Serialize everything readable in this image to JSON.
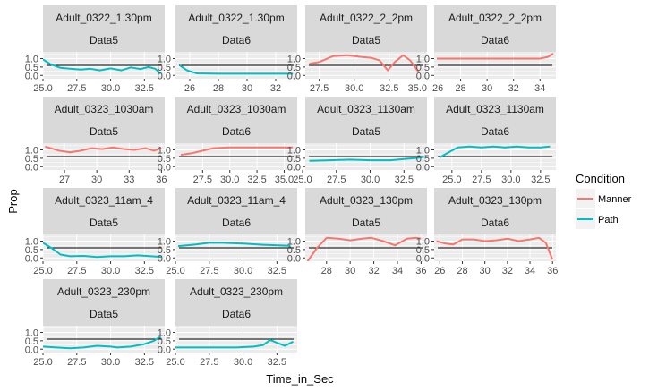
{
  "chart_data": {
    "type": "line",
    "xlabel": "Time_in_Sec",
    "ylabel": "Prop",
    "y_ticks": [
      "0.0",
      "0.5",
      "1.0"
    ],
    "ylim": [
      -0.2,
      1.4
    ],
    "reference_line_y": 0.6,
    "legend": {
      "title": "Condition",
      "placement": "right",
      "items": [
        {
          "name": "Manner",
          "color": "#F8766D"
        },
        {
          "name": "Path",
          "color": "#00BFC4"
        }
      ]
    },
    "panels": [
      {
        "strip1": "Adult_0322_1.30pm",
        "strip2": "Data5",
        "xlim": [
          25,
          34
        ],
        "xticks": [
          25.0,
          27.5,
          30.0,
          32.5
        ],
        "xtick_labels": [
          "25.0",
          "27.5",
          "30.0",
          "32.5"
        ],
        "series": [
          {
            "name": "Path",
            "points": [
              [
                25.0,
                0.95
              ],
              [
                25.6,
                0.65
              ],
              [
                26.3,
                0.45
              ],
              [
                27.0,
                0.4
              ],
              [
                27.8,
                0.35
              ],
              [
                28.5,
                0.4
              ],
              [
                29.2,
                0.3
              ],
              [
                30.0,
                0.42
              ],
              [
                30.8,
                0.3
              ],
              [
                31.5,
                0.48
              ],
              [
                32.2,
                0.38
              ],
              [
                32.8,
                0.5
              ],
              [
                33.3,
                0.4
              ],
              [
                33.7,
                0.1
              ]
            ]
          }
        ]
      },
      {
        "strip1": "Adult_0322_1.30pm",
        "strip2": "Data6",
        "xlim": [
          25,
          33.5
        ],
        "xticks": [
          26,
          28,
          30,
          32
        ],
        "xtick_labels": [
          "26",
          "28",
          "30",
          "32"
        ],
        "series": [
          {
            "name": "Path",
            "points": [
              [
                25.3,
                0.6
              ],
              [
                25.8,
                0.3
              ],
              [
                26.5,
                0.12
              ],
              [
                28,
                0.1
              ],
              [
                30,
                0.1
              ],
              [
                32,
                0.1
              ],
              [
                33.2,
                0.1
              ]
            ]
          }
        ]
      },
      {
        "strip1": "Adult_0322_2_2pm",
        "strip2": "Data5",
        "xlim": [
          26.5,
          35.2
        ],
        "xticks": [
          27.5,
          30.0,
          32.5
        ],
        "xtick_labels": [
          "27.5",
          "30.0",
          "32.5"
        ],
        "right_tick_label": "35.0",
        "series": [
          {
            "name": "Manner",
            "points": [
              [
                26.8,
                0.7
              ],
              [
                27.5,
                0.8
              ],
              [
                28.5,
                1.15
              ],
              [
                29.5,
                1.2
              ],
              [
                30.5,
                1.1
              ],
              [
                31.2,
                1.05
              ],
              [
                31.8,
                0.9
              ],
              [
                32.4,
                0.3
              ],
              [
                32.9,
                0.8
              ],
              [
                33.5,
                1.2
              ],
              [
                34,
                0.9
              ],
              [
                34.6,
                0.2
              ]
            ]
          }
        ]
      },
      {
        "strip1": "Adult_0322_2_2pm",
        "strip2": "Data6",
        "xlim": [
          26,
          35.2
        ],
        "xticks": [
          28,
          30,
          32,
          34
        ],
        "xtick_labels": [
          "28",
          "30",
          "32",
          "34"
        ],
        "left_tick_label": "26",
        "series": [
          {
            "name": "Manner",
            "points": [
              [
                26.2,
                1.0
              ],
              [
                28,
                1.0
              ],
              [
                30,
                1.0
              ],
              [
                32,
                1.0
              ],
              [
                34,
                1.0
              ],
              [
                34.6,
                1.1
              ],
              [
                35.0,
                1.3
              ]
            ]
          }
        ]
      },
      {
        "strip1": "Adult_0323_1030am",
        "strip2": "Data5",
        "xlim": [
          25,
          36.3
        ],
        "xticks": [
          27,
          30,
          33,
          36
        ],
        "xtick_labels": [
          "27",
          "30",
          "33",
          "36"
        ],
        "series": [
          {
            "name": "Manner",
            "points": [
              [
                25.2,
                1.2
              ],
              [
                26.5,
                0.95
              ],
              [
                27.5,
                0.85
              ],
              [
                28.5,
                0.95
              ],
              [
                29.5,
                1.1
              ],
              [
                30.5,
                1.05
              ],
              [
                31.5,
                1.15
              ],
              [
                32.5,
                1.05
              ],
              [
                33.5,
                1.0
              ],
              [
                34.5,
                1.1
              ],
              [
                35.3,
                0.95
              ],
              [
                36,
                1.1
              ]
            ]
          }
        ]
      },
      {
        "strip1": "Adult_0323_1030am",
        "strip2": "Data6",
        "xlim": [
          25,
          36.2
        ],
        "xticks": [
          27.5,
          30.0,
          32.5,
          35.0
        ],
        "xtick_labels": [
          "27.5",
          "30.0",
          "32.5",
          "35.0"
        ],
        "series": [
          {
            "name": "Manner",
            "points": [
              [
                25.5,
                0.7
              ],
              [
                26.5,
                0.8
              ],
              [
                27.5,
                0.95
              ],
              [
                28.5,
                1.1
              ],
              [
                30,
                1.15
              ],
              [
                31.5,
                1.15
              ],
              [
                33,
                1.15
              ],
              [
                35.8,
                1.15
              ]
            ]
          }
        ]
      },
      {
        "strip1": "Adult_0323_1130am",
        "strip2": "Data5",
        "xlim": [
          25.2,
          34.2
        ],
        "xticks": [
          25.0,
          27.5,
          30.0,
          32.5
        ],
        "xtick_labels": [
          "25.0",
          "27.5",
          "30.0",
          "32.5"
        ],
        "series": [
          {
            "name": "Path",
            "points": [
              [
                25.5,
                0.35
              ],
              [
                27,
                0.38
              ],
              [
                28.5,
                0.42
              ],
              [
                30,
                0.38
              ],
              [
                31.5,
                0.38
              ],
              [
                32.5,
                0.45
              ],
              [
                33.5,
                0.52
              ],
              [
                34,
                0.58
              ]
            ]
          }
        ]
      },
      {
        "strip1": "Adult_0323_1130am",
        "strip2": "Data6",
        "xlim": [
          23.5,
          33.8
        ],
        "xticks": [
          25.0,
          27.5,
          30.0,
          32.5
        ],
        "xtick_labels": [
          "25.0",
          "27.5",
          "30.0",
          "32.5"
        ],
        "series": [
          {
            "name": "Path",
            "points": [
              [
                24,
                0.55
              ],
              [
                24.6,
                0.8
              ],
              [
                25.5,
                1.15
              ],
              [
                26.5,
                1.2
              ],
              [
                27.5,
                1.15
              ],
              [
                28.5,
                1.2
              ],
              [
                29.5,
                1.15
              ],
              [
                30.5,
                1.2
              ],
              [
                31.5,
                1.15
              ],
              [
                32.5,
                1.15
              ],
              [
                33.3,
                1.2
              ]
            ]
          }
        ]
      },
      {
        "strip1": "Adult_0323_11am_4",
        "strip2": "Data5",
        "xlim": [
          25,
          34
        ],
        "xticks": [
          25.0,
          27.5,
          30.0,
          32.5
        ],
        "xtick_labels": [
          "25.0",
          "27.5",
          "30.0",
          "32.5"
        ],
        "series": [
          {
            "name": "Path",
            "points": [
              [
                25.0,
                0.9
              ],
              [
                25.7,
                0.55
              ],
              [
                26.3,
                0.2
              ],
              [
                27,
                0.1
              ],
              [
                28,
                0.12
              ],
              [
                29,
                0.05
              ],
              [
                30,
                0.1
              ],
              [
                31,
                0.1
              ],
              [
                32,
                0.15
              ],
              [
                33,
                0.1
              ],
              [
                33.8,
                0.05
              ]
            ]
          }
        ]
      },
      {
        "strip1": "Adult_0323_11am_4",
        "strip2": "Data6",
        "xlim": [
          25,
          34
        ],
        "xticks": [
          25.0,
          27.5,
          30.0,
          32.5
        ],
        "xtick_labels": [
          "25.0",
          "27.5",
          "30.0",
          "32.5"
        ],
        "series": [
          {
            "name": "Path",
            "points": [
              [
                25.2,
                0.7
              ],
              [
                26.5,
                0.8
              ],
              [
                27.5,
                0.9
              ],
              [
                28.5,
                0.9
              ],
              [
                30,
                0.85
              ],
              [
                31.5,
                0.78
              ],
              [
                33.5,
                0.72
              ]
            ]
          }
        ]
      },
      {
        "strip1": "Adult_0323_130pm",
        "strip2": "Data5",
        "xlim": [
          26.2,
          36.5
        ],
        "xticks": [
          28,
          30,
          32,
          34,
          36
        ],
        "xtick_labels": [
          "28",
          "30",
          "32",
          "34",
          "36"
        ],
        "series": [
          {
            "name": "Manner",
            "points": [
              [
                26.4,
                -0.2
              ],
              [
                27.2,
                0.6
              ],
              [
                28,
                1.2
              ],
              [
                29,
                1.15
              ],
              [
                30,
                1.05
              ],
              [
                31,
                1.15
              ],
              [
                31.8,
                1.2
              ],
              [
                32.8,
                1.0
              ],
              [
                33.8,
                0.75
              ],
              [
                34.8,
                1.15
              ],
              [
                35.6,
                1.2
              ],
              [
                36,
                1.15
              ]
            ]
          }
        ]
      },
      {
        "strip1": "Adult_0323_130pm",
        "strip2": "Data6",
        "xlim": [
          25.5,
          36.3
        ],
        "xticks": [
          26,
          28,
          30,
          32,
          34,
          36
        ],
        "xtick_labels": [
          "26",
          "28",
          "30",
          "32",
          "34",
          "36"
        ],
        "series": [
          {
            "name": "Manner",
            "points": [
              [
                25.7,
                1.0
              ],
              [
                26.5,
                0.85
              ],
              [
                27.2,
                0.8
              ],
              [
                28,
                1.1
              ],
              [
                29,
                1.1
              ],
              [
                30,
                1.0
              ],
              [
                31,
                1.05
              ],
              [
                32,
                1.15
              ],
              [
                33,
                1.0
              ],
              [
                34,
                1.1
              ],
              [
                34.8,
                1.2
              ],
              [
                35.4,
                0.9
              ],
              [
                36,
                -0.1
              ]
            ]
          }
        ]
      },
      {
        "strip1": "Adult_0323_230pm",
        "strip2": "Data5",
        "xlim": [
          25,
          34
        ],
        "xticks": [
          25.0,
          27.5,
          30.0,
          32.5
        ],
        "xtick_labels": [
          "25.0",
          "27.5",
          "30.0",
          "32.5"
        ],
        "series": [
          {
            "name": "Path",
            "points": [
              [
                25.0,
                0.15
              ],
              [
                26,
                0.1
              ],
              [
                27,
                0.05
              ],
              [
                28,
                0.1
              ],
              [
                29,
                0.2
              ],
              [
                30,
                0.15
              ],
              [
                30.5,
                0.1
              ],
              [
                31.5,
                0.15
              ],
              [
                32.5,
                0.3
              ],
              [
                33.2,
                0.5
              ],
              [
                33.7,
                0.75
              ]
            ]
          }
        ]
      },
      {
        "strip1": "Adult_0323_230pm",
        "strip2": "Data6",
        "xlim": [
          25,
          34
        ],
        "xticks": [
          25.0,
          27.5,
          30.0,
          32.5
        ],
        "xtick_labels": [
          "25.0",
          "27.5",
          "30.0",
          "32.5"
        ],
        "series": [
          {
            "name": "Path",
            "points": [
              [
                25.0,
                0.1
              ],
              [
                26.5,
                0.1
              ],
              [
                28,
                0.1
              ],
              [
                29.5,
                0.1
              ],
              [
                30.8,
                0.15
              ],
              [
                31.5,
                0.25
              ],
              [
                32,
                0.55
              ],
              [
                32.6,
                0.35
              ],
              [
                33.1,
                0.2
              ],
              [
                33.7,
                0.45
              ]
            ]
          }
        ]
      }
    ]
  }
}
